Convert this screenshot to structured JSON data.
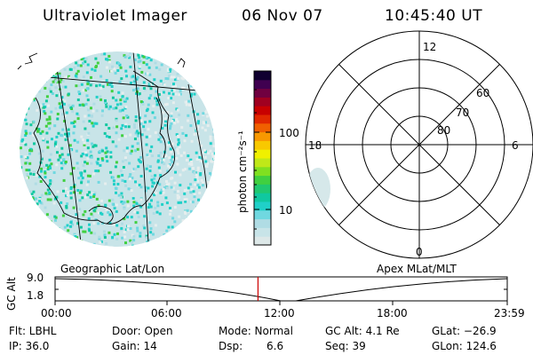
{
  "header": {
    "instrument": "Ultraviolet Imager",
    "date": "06 Nov 07",
    "time": "10:45:40 UT"
  },
  "colorbar": {
    "unit_label": "photon cm⁻²s⁻¹",
    "tick_100": "100",
    "tick_10": "10",
    "colors": [
      "#dde8e8",
      "#c8e4e8",
      "#b0dce4",
      "#70d8e0",
      "#20d0c8",
      "#10c8a0",
      "#20c870",
      "#40d040",
      "#80e020",
      "#c0e818",
      "#f0f000",
      "#f8c800",
      "#f89800",
      "#f06000",
      "#e02800",
      "#c80000",
      "#a00020",
      "#700040",
      "#400050",
      "#100030"
    ]
  },
  "polar": {
    "lat_labels": [
      "80",
      "70",
      "60"
    ],
    "mlt_labels": {
      "top": "12",
      "bottom": "0",
      "left": "18",
      "right": "6"
    }
  },
  "timeline": {
    "left_label": "Geographic Lat/Lon",
    "right_label": "Apex MLat/MLT",
    "y_axis_label": "GC Alt",
    "y_ticks": [
      "9.0",
      "1.8"
    ],
    "x_ticks": [
      "00:00",
      "06:00",
      "12:00",
      "18:00",
      "23:59"
    ],
    "marker_fraction": 0.4488
  },
  "info": {
    "flt": "Flt: LBHL",
    "ip": "IP: 36.0",
    "door": "Door: Open",
    "gain": "Gain: 14",
    "mode": "Mode: Normal",
    "dsp_label": "Dsp:",
    "dsp_value": "6.6",
    "gcalt": "GC Alt: 4.1 Re",
    "seq": "Seq: 39",
    "glat": "GLat: −26.9",
    "glon": "GLon: 124.6"
  },
  "colors": {
    "marker": "#cc0000",
    "speckle_base": "#c8e4e8"
  }
}
